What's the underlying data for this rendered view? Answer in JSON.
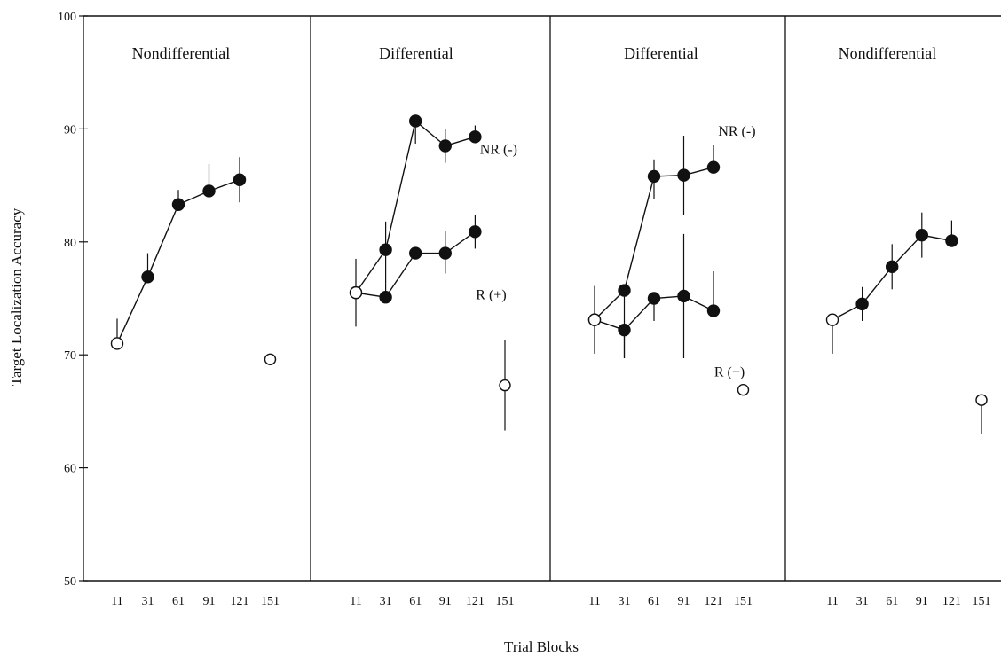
{
  "chart_data": {
    "type": "line",
    "ylabel": "Target Localization Accuracy",
    "xlabel": "Trial Blocks",
    "ylim": [
      50,
      100
    ],
    "yticks": [
      50,
      60,
      70,
      80,
      90,
      100
    ],
    "x_categories": [
      "11",
      "31",
      "61",
      "91",
      "121",
      "151"
    ],
    "grid": false,
    "legend": "none",
    "colors": {
      "ink": "#111111",
      "background": "#ffffff"
    },
    "panels": [
      {
        "title": "Nondifferential",
        "series": [
          {
            "label": "",
            "values": [
              71.0,
              76.9,
              83.3,
              84.5,
              85.5
            ],
            "err_hi": [
              2.2,
              2.1,
              1.3,
              2.4,
              2.0
            ],
            "err_lo": [
              0,
              0,
              0,
              0,
              2.0
            ],
            "markers": [
              "open",
              "filled",
              "filled",
              "filled",
              "filled"
            ],
            "label_at": null
          }
        ],
        "isolated": [
          {
            "category": "151",
            "value": 69.6
          }
        ]
      },
      {
        "title": "Differential",
        "series": [
          {
            "label": "NR (-)",
            "values": [
              75.5,
              79.3,
              90.7,
              88.5,
              89.3
            ],
            "err_hi": [
              3.0,
              2.5,
              0,
              1.5,
              1.0
            ],
            "err_lo": [
              3.0,
              4.0,
              2.0,
              1.5,
              0
            ],
            "markers": [
              "open",
              "filled",
              "filled",
              "filled",
              "filled"
            ],
            "label_at": [
              88.2,
              4.55
            ]
          },
          {
            "label": "R (+)",
            "values": [
              75.5,
              75.1,
              79.0,
              79.0,
              80.9
            ],
            "err_hi": [
              0,
              0,
              0,
              2.0,
              1.5
            ],
            "err_lo": [
              0,
              0,
              0,
              1.8,
              1.5
            ],
            "markers": [
              "open",
              "filled",
              "filled",
              "filled",
              "filled"
            ],
            "label_at": [
              75.3,
              4.3
            ]
          }
        ],
        "isolated": [
          {
            "category": "151",
            "value": 67.3,
            "err_hi": 4.0,
            "err_lo": 4.0
          }
        ]
      },
      {
        "title": "Differential",
        "series": [
          {
            "label": "NR (-)",
            "values": [
              73.1,
              75.7,
              85.8,
              85.9,
              86.6
            ],
            "err_hi": [
              3.0,
              0,
              1.5,
              3.5,
              2.0
            ],
            "err_lo": [
              3.0,
              6.0,
              2.0,
              3.5,
              0
            ],
            "markers": [
              "open",
              "filled",
              "filled",
              "filled",
              "filled"
            ],
            "label_at": [
              89.8,
              4.55
            ]
          },
          {
            "label": "R (−)",
            "values": [
              73.1,
              72.2,
              75.0,
              75.2,
              73.9
            ],
            "err_hi": [
              0,
              0,
              0,
              5.5,
              3.5
            ],
            "err_lo": [
              0,
              2.5,
              2.0,
              5.5,
              0
            ],
            "markers": [
              "open",
              "filled",
              "filled",
              "filled",
              "filled"
            ],
            "label_at": [
              68.5,
              4.3
            ]
          }
        ],
        "isolated": [
          {
            "category": "151",
            "value": 66.9
          }
        ]
      },
      {
        "title": "Nondifferential",
        "series": [
          {
            "label": "",
            "values": [
              73.1,
              74.5,
              77.8,
              80.6,
              80.1
            ],
            "err_hi": [
              0,
              1.5,
              2.0,
              2.0,
              1.8
            ],
            "err_lo": [
              3.0,
              1.5,
              2.0,
              2.0,
              0
            ],
            "markers": [
              "open",
              "filled",
              "filled",
              "filled",
              "filled"
            ],
            "label_at": null
          }
        ],
        "isolated": [
          {
            "category": "151",
            "value": 66.0,
            "err_hi": 0,
            "err_lo": 3.0
          }
        ]
      }
    ]
  }
}
